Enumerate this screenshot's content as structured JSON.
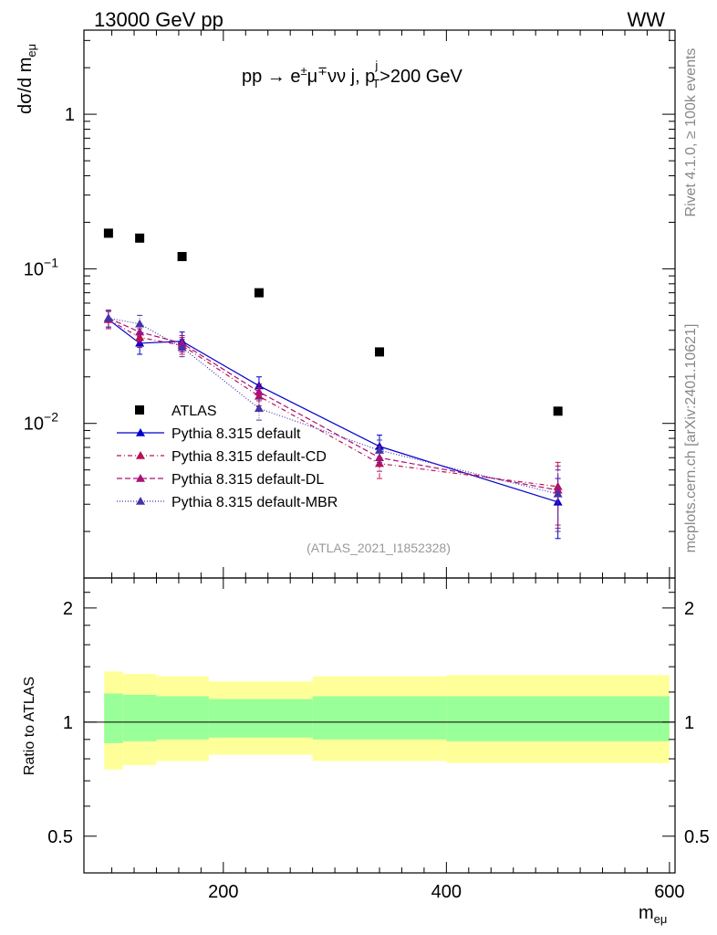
{
  "header": {
    "energy_label": "13000 GeV pp",
    "process_label": "WW",
    "side_rivet": "Rivet 4.1.0, ≥ 100k events",
    "side_mcplots": "mcplots.cern.ch [arXiv:2401.10621]",
    "watermark": "(ATLAS_2021_I1852328)"
  },
  "chart_data": {
    "type": "scatter",
    "title_parts": {
      "lead": "pp → e",
      "sup1": "±",
      "mid1": "μ",
      "sup2": "∓",
      "mid2": "νν j, p",
      "sub_T": "T",
      "sup_j": "j",
      "tail": ">200 GeV"
    },
    "ylabel": {
      "main": "dσ/d m",
      "sub": "eμ"
    },
    "xlabel": {
      "main": "m",
      "sub": "eμ"
    },
    "ratio_ylabel": "Ratio to ATLAS",
    "xlim": [
      75,
      605
    ],
    "ylim": [
      0.001,
      3.5
    ],
    "ratio_ylim": [
      0.4,
      2.4
    ],
    "x_ticks": [
      200,
      400,
      600
    ],
    "x_tick_labels": [
      "200",
      "400",
      "600"
    ],
    "y_ticks": [
      {
        "value": 1,
        "base": "1",
        "exp": ""
      },
      {
        "value": 0.1,
        "base": "10",
        "exp": "−1"
      },
      {
        "value": 0.01,
        "base": "10",
        "exp": "−2"
      }
    ],
    "ratio_ticks": [
      {
        "value": 2,
        "label": "2"
      },
      {
        "value": 1,
        "label": "1"
      },
      {
        "value": 0.5,
        "label": "0.5"
      }
    ],
    "bin_edges": [
      85,
      110,
      140,
      187,
      280,
      400,
      600
    ],
    "bin_centers": [
      97,
      125,
      163,
      232,
      340,
      500
    ],
    "series": [
      {
        "name": "ATLAS",
        "marker": "square",
        "color": "#000000",
        "values": [
          0.17,
          0.158,
          0.12,
          0.07,
          0.029,
          0.012
        ]
      },
      {
        "name": "Pythia 8.315 default",
        "marker": "triangle",
        "color": "#0000cc",
        "dash": "",
        "values": [
          0.047,
          0.033,
          0.034,
          0.0175,
          0.0071,
          0.0031
        ],
        "errors": [
          0.006,
          0.005,
          0.005,
          0.0025,
          0.0013,
          0.0013
        ]
      },
      {
        "name": "Pythia 8.315 default-CD",
        "marker": "triangle",
        "color": "#bb1155",
        "dash": "5,3,1,3",
        "values": [
          0.047,
          0.036,
          0.032,
          0.015,
          0.0055,
          0.0039
        ],
        "errors": [
          0.006,
          0.005,
          0.004,
          0.002,
          0.0011,
          0.0017
        ]
      },
      {
        "name": "Pythia 8.315 default-DL",
        "marker": "triangle",
        "color": "#aa1177",
        "dash": "6,3",
        "values": [
          0.048,
          0.039,
          0.033,
          0.016,
          0.006,
          0.0037
        ],
        "errors": [
          0.006,
          0.005,
          0.004,
          0.002,
          0.0011,
          0.0016
        ]
      },
      {
        "name": "Pythia 8.315 default-MBR",
        "marker": "triangle",
        "color": "#4433aa",
        "dash": "1,2",
        "values": [
          0.048,
          0.044,
          0.031,
          0.0125,
          0.0067,
          0.0035
        ],
        "errors": [
          0.006,
          0.006,
          0.004,
          0.002,
          0.0011,
          0.0015
        ]
      }
    ],
    "ratio_bands": {
      "inner_low": [
        0.88,
        0.89,
        0.9,
        0.91,
        0.9,
        0.89
      ],
      "inner_high": [
        1.19,
        1.18,
        1.17,
        1.15,
        1.17,
        1.17
      ],
      "outer_low": [
        0.75,
        0.77,
        0.79,
        0.82,
        0.79,
        0.78
      ],
      "outer_high": [
        1.36,
        1.34,
        1.32,
        1.28,
        1.32,
        1.33
      ]
    },
    "colors": {
      "inner_band": "#99ff99",
      "outer_band": "#ffff99",
      "ratio_line": "#000000"
    }
  }
}
